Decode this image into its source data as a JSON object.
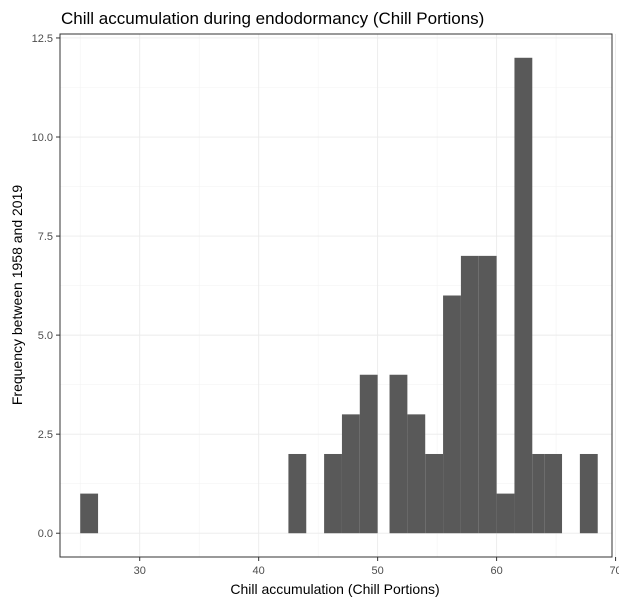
{
  "chart_data": {
    "type": "bar",
    "title": "Chill accumulation during endodormancy (Chill Portions)",
    "xlabel": "Chill accumulation (Chill Portions)",
    "ylabel": "Frequency between 1958 and 2019",
    "xlim": [
      23.3,
      69.7
    ],
    "ylim": [
      -0.6,
      12.6
    ],
    "xticks": [
      30,
      40,
      50,
      60,
      70
    ],
    "yticks": [
      0.0,
      2.5,
      5.0,
      7.5,
      10.0,
      12.5
    ],
    "ytick_labels": [
      "0.0",
      "2.5",
      "5.0",
      "7.5",
      "10.0",
      "12.5"
    ],
    "grid": true,
    "bar_color": "#595959",
    "bins": [
      {
        "x0": 25.0,
        "x1": 26.5,
        "count": 1
      },
      {
        "x0": 42.5,
        "x1": 44.0,
        "count": 2
      },
      {
        "x0": 45.5,
        "x1": 47.0,
        "count": 2
      },
      {
        "x0": 47.0,
        "x1": 48.5,
        "count": 3
      },
      {
        "x0": 48.5,
        "x1": 50.0,
        "count": 4
      },
      {
        "x0": 51.0,
        "x1": 52.5,
        "count": 4
      },
      {
        "x0": 52.5,
        "x1": 54.0,
        "count": 3
      },
      {
        "x0": 54.0,
        "x1": 55.5,
        "count": 2
      },
      {
        "x0": 55.5,
        "x1": 57.0,
        "count": 6
      },
      {
        "x0": 57.0,
        "x1": 58.5,
        "count": 7
      },
      {
        "x0": 58.5,
        "x1": 60.0,
        "count": 7
      },
      {
        "x0": 60.0,
        "x1": 61.5,
        "count": 1
      },
      {
        "x0": 61.5,
        "x1": 63.0,
        "count": 12
      },
      {
        "x0": 63.0,
        "x1": 64.0,
        "count": 2
      },
      {
        "x0": 64.0,
        "x1": 65.5,
        "count": 2
      },
      {
        "x0": 67.0,
        "x1": 68.5,
        "count": 2
      }
    ]
  }
}
